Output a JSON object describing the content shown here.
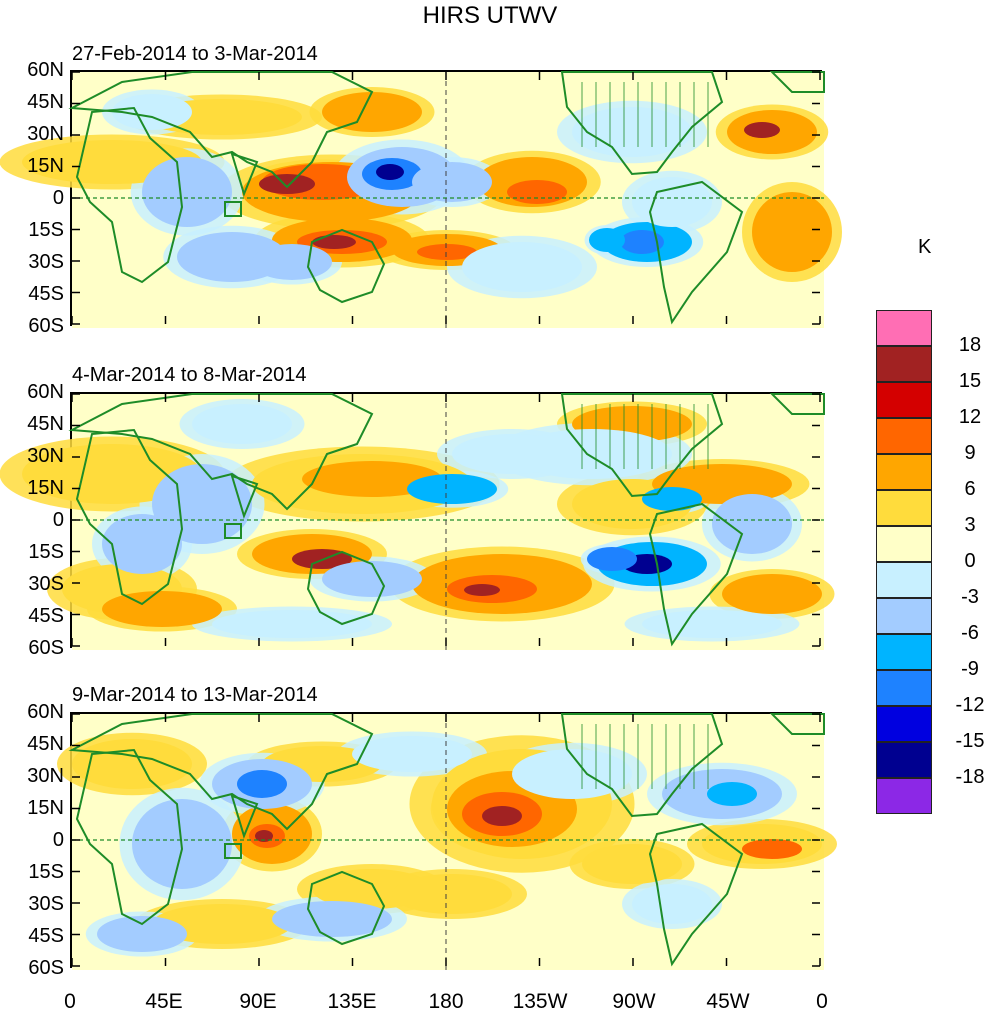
{
  "title": "HIRS UTWV",
  "panels": [
    {
      "date_range": "27-Feb-2014 to 3-Mar-2014"
    },
    {
      "date_range": "4-Mar-2014 to 8-Mar-2014"
    },
    {
      "date_range": "9-Mar-2014 to 13-Mar-2014"
    }
  ],
  "lat_labels": [
    "60N",
    "45N",
    "30N",
    "15N",
    "0",
    "15S",
    "30S",
    "45S",
    "60S"
  ],
  "lon_labels": [
    "0",
    "45E",
    "90E",
    "135E",
    "180",
    "135W",
    "90W",
    "45W",
    "0"
  ],
  "colorbar": {
    "unit": "K",
    "labels": [
      "18",
      "15",
      "12",
      "9",
      "6",
      "3",
      "0",
      "-3",
      "-6",
      "-9",
      "-12",
      "-15",
      "-18"
    ],
    "colors": [
      "#ff6eb4",
      "#a12222",
      "#d40000",
      "#ff6600",
      "#ffa600",
      "#ffdc3c",
      "#ffffc8",
      "#c8f0ff",
      "#a3ccff",
      "#00b4ff",
      "#1e82ff",
      "#0000e0",
      "#000090",
      "#8c28e6"
    ]
  },
  "colors": {
    "coast": "#1e8c28",
    "zero_line": "#1e8c28",
    "dateline": "#404040"
  }
}
